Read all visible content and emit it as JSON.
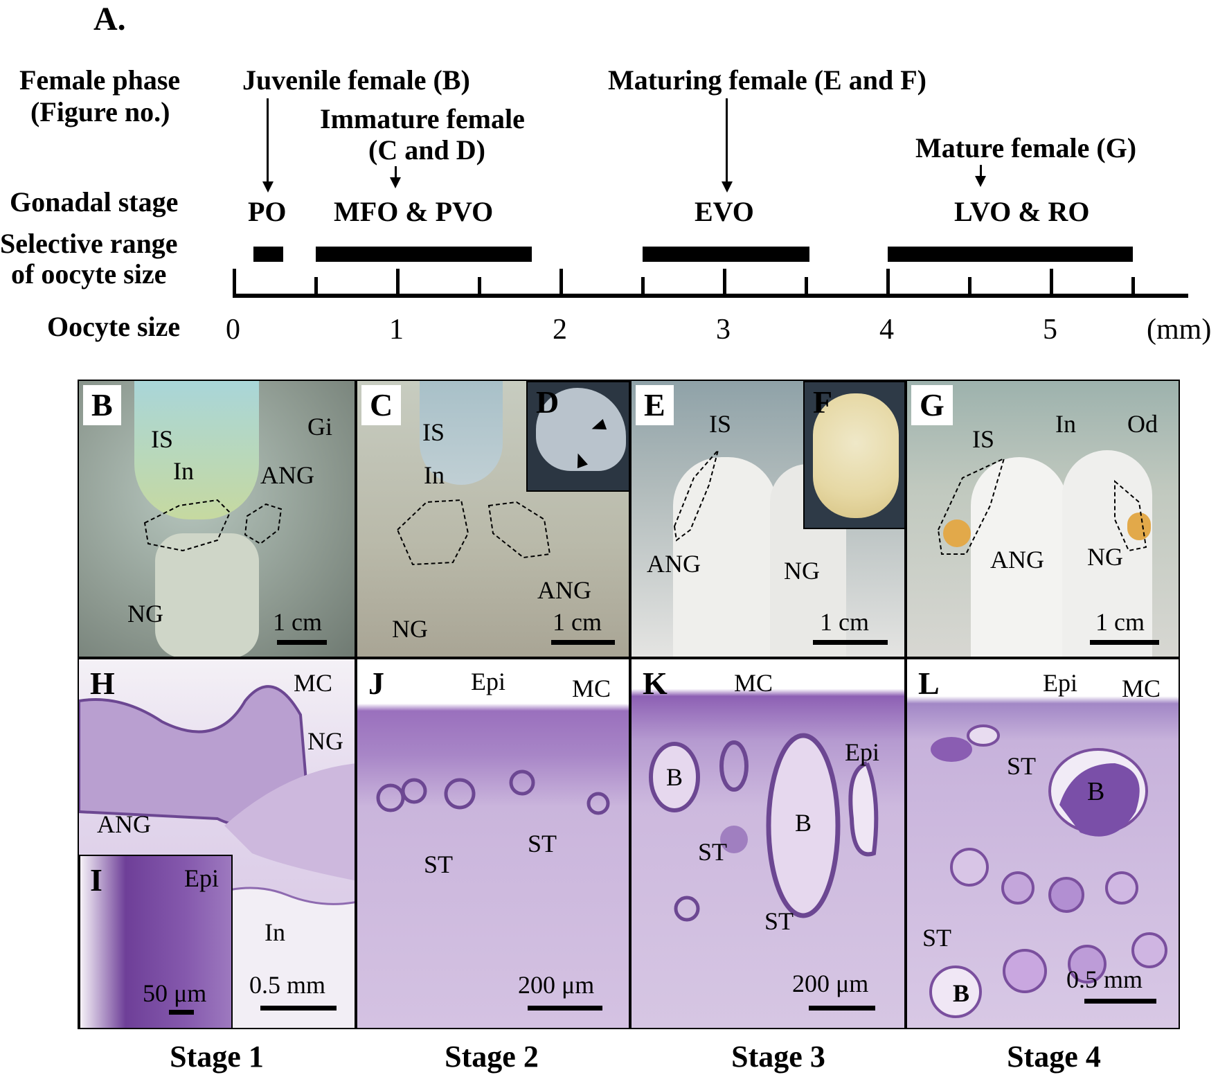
{
  "panel_a": {
    "label": "A.",
    "row_labels": {
      "female_phase": [
        "Female phase",
        "(Figure no.)"
      ],
      "gonadal_stage": "Gonadal stage",
      "selective_range": [
        "Selective range",
        "of oocyte size"
      ],
      "oocyte_size": "Oocyte size"
    },
    "phases": {
      "juvenile": "Juvenile female (B)",
      "immature": [
        "Immature female",
        "(C and D)"
      ],
      "maturing": "Maturing female (E and F)",
      "mature": "Mature female (G)"
    },
    "gonadal_stages": {
      "po": "PO",
      "mfo_pvo": "MFO & PVO",
      "evo": "EVO",
      "lvo_ro": "LVO & RO"
    },
    "axis": {
      "ticks": [
        "0",
        "1",
        "2",
        "3",
        "4",
        "5"
      ],
      "unit": "(mm)",
      "ranges_mm": [
        [
          0.12,
          0.3
        ],
        [
          0.5,
          1.82
        ],
        [
          2.5,
          3.52
        ],
        [
          4.0,
          5.5
        ]
      ]
    }
  },
  "photos": {
    "b": {
      "label": "B",
      "gi": "Gi",
      "is": "IS",
      "in": "In",
      "ang": "ANG",
      "ng": "NG",
      "scale": "1 cm"
    },
    "c": {
      "label": "C",
      "is": "IS",
      "in": "In",
      "ang": "ANG",
      "ng": "NG",
      "scale": "1 cm"
    },
    "d": {
      "label": "D"
    },
    "e": {
      "label": "E",
      "is": "IS",
      "ang": "ANG",
      "ng": "NG",
      "scale": "1 cm"
    },
    "f": {
      "label": "F"
    },
    "g": {
      "label": "G",
      "in": "In",
      "od": "Od",
      "is": "IS",
      "ang": "ANG",
      "ng": "NG",
      "scale": "1 cm"
    }
  },
  "histology": {
    "h": {
      "label": "H",
      "mc": "MC",
      "ng": "NG",
      "ang": "ANG",
      "in": "In",
      "scale": "0.5 mm"
    },
    "i": {
      "label": "I",
      "epi": "Epi",
      "scale": "50 μm"
    },
    "j": {
      "label": "J",
      "epi": "Epi",
      "mc": "MC",
      "st1": "ST",
      "st2": "ST",
      "scale": "200 μm"
    },
    "k": {
      "label": "K",
      "mc": "MC",
      "epi": "Epi",
      "b1": "B",
      "b2": "B",
      "st1": "ST",
      "st2": "ST",
      "scale": "200 μm"
    },
    "l": {
      "label": "L",
      "epi": "Epi",
      "mc": "MC",
      "st1": "ST",
      "b1": "B",
      "st2": "ST",
      "b2": "B",
      "scale": "0.5 mm"
    }
  },
  "stages": [
    "Stage 1",
    "Stage 2",
    "Stage 3",
    "Stage 4"
  ],
  "colors": {
    "histo_bg": "#c9b3d8",
    "histo_dark": "#7a4f9e",
    "photo_bg": "#9aa49a"
  }
}
